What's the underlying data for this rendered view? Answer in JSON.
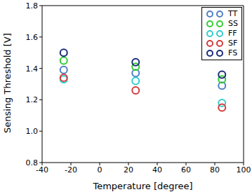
{
  "chart_data": {
    "type": "scatter",
    "xlabel": "Temperature [degree]",
    "ylabel": "Sensing Threshold [V]",
    "x": [
      -25,
      25,
      85
    ],
    "series": [
      {
        "name": "TT",
        "color": "#4f7fc4",
        "marker": "o",
        "values": [
          1.39,
          1.37,
          1.29
        ]
      },
      {
        "name": "SS",
        "color": "#33cc33",
        "marker": "o",
        "values": [
          1.45,
          1.41,
          1.33
        ]
      },
      {
        "name": "FF",
        "color": "#33cccc",
        "marker": "o",
        "values": [
          1.33,
          1.32,
          1.18
        ]
      },
      {
        "name": "SF",
        "color": "#d23c3c",
        "marker": "o",
        "values": [
          1.34,
          1.26,
          1.15
        ]
      },
      {
        "name": "FS",
        "color": "#1a2a7a",
        "marker": "o",
        "values": [
          1.5,
          1.44,
          1.36
        ]
      }
    ],
    "xlim": [
      -40,
      100
    ],
    "xticks": [
      -40,
      -20,
      0,
      20,
      40,
      60,
      80,
      100
    ],
    "ylim": [
      0.8,
      1.8
    ],
    "yticks": [
      0.8,
      {
        "value": 1,
        "label": "1.0"
      },
      1.2,
      1.4,
      1.6,
      1.8
    ],
    "grid": false,
    "legend": "upper right"
  }
}
